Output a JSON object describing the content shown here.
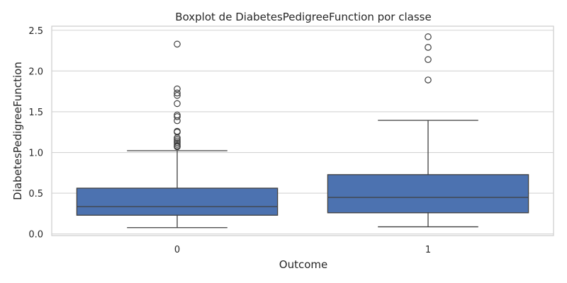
{
  "chart_data": {
    "type": "box",
    "title": "Boxplot de DiabetesPedigreeFunction por classe",
    "xlabel": "Outcome",
    "ylabel": "DiabetesPedigreeFunction",
    "categories": [
      "0",
      "1"
    ],
    "ylim": [
      -0.02,
      2.55
    ],
    "yticks": [
      0.0,
      0.5,
      1.0,
      1.5,
      2.0,
      2.5
    ],
    "ytick_labels": [
      "0.0",
      "0.5",
      "1.0",
      "1.5",
      "2.0",
      "2.5"
    ],
    "grid": true,
    "box_color": "#4c72b0",
    "line_color": "#3f3f3f",
    "series": [
      {
        "category": "0",
        "whisker_low": 0.078,
        "q1": 0.23,
        "median": 0.336,
        "q3": 0.562,
        "whisker_high": 1.022,
        "outliers": [
          1.07,
          1.08,
          1.1,
          1.12,
          1.14,
          1.16,
          1.18,
          1.25,
          1.26,
          1.39,
          1.44,
          1.46,
          1.6,
          1.7,
          1.73,
          1.78,
          2.33
        ]
      },
      {
        "category": "1",
        "whisker_low": 0.088,
        "q1": 0.26,
        "median": 0.449,
        "q3": 0.728,
        "whisker_high": 1.394,
        "outliers": [
          1.89,
          2.14,
          2.29,
          2.42
        ]
      }
    ]
  }
}
